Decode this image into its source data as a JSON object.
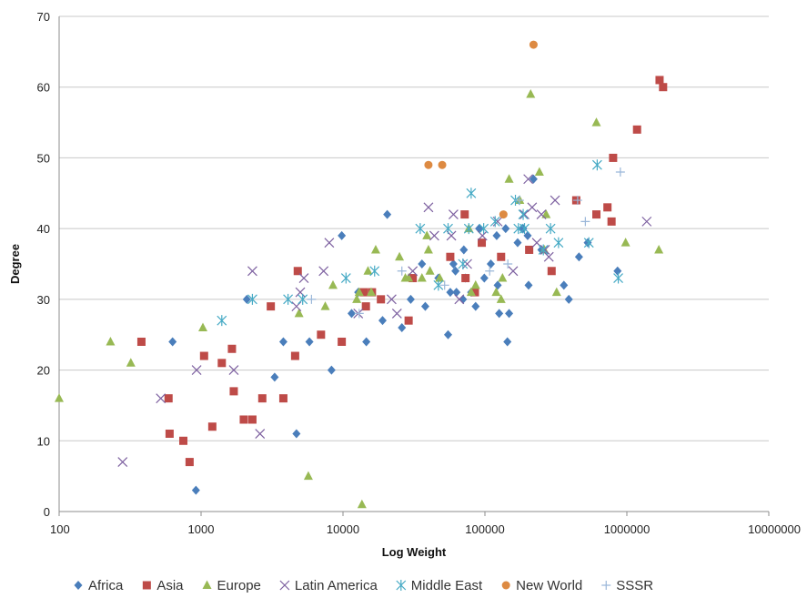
{
  "chart_data": {
    "type": "scatter",
    "title": "",
    "xlabel": "Log Weight",
    "ylabel": "Degree",
    "xscale": "log",
    "xlim": [
      100,
      10000000
    ],
    "ylim": [
      0,
      70
    ],
    "xticks": [
      100,
      1000,
      10000,
      100000,
      1000000,
      10000000
    ],
    "xtick_labels": [
      "100",
      "1000",
      "10000",
      "100000",
      "1000000",
      "10000000"
    ],
    "yticks": [
      0,
      10,
      20,
      30,
      40,
      50,
      60,
      70
    ],
    "ytick_labels": [
      "0",
      "10",
      "20",
      "30",
      "40",
      "50",
      "60",
      "70"
    ],
    "grid": "horizontal",
    "legend_position": "bottom",
    "series": [
      {
        "name": "Africa",
        "marker": "diamond",
        "color": "#4a7ebb",
        "points": [
          [
            630,
            24
          ],
          [
            920,
            3
          ],
          [
            2100,
            30
          ],
          [
            3300,
            19
          ],
          [
            3800,
            24
          ],
          [
            4700,
            11
          ],
          [
            5800,
            24
          ],
          [
            8300,
            20
          ],
          [
            9800,
            39
          ],
          [
            11500,
            28
          ],
          [
            12800,
            31
          ],
          [
            14600,
            24
          ],
          [
            19000,
            27
          ],
          [
            20500,
            42
          ],
          [
            26000,
            26
          ],
          [
            30000,
            30
          ],
          [
            36000,
            35
          ],
          [
            38000,
            29
          ],
          [
            47000,
            33
          ],
          [
            55000,
            25
          ],
          [
            57000,
            31
          ],
          [
            60000,
            35
          ],
          [
            62000,
            34
          ],
          [
            63000,
            31
          ],
          [
            70000,
            30
          ],
          [
            71000,
            37
          ],
          [
            73000,
            33
          ],
          [
            80000,
            31
          ],
          [
            86000,
            29
          ],
          [
            91000,
            40
          ],
          [
            99000,
            33
          ],
          [
            110000,
            35
          ],
          [
            121000,
            39
          ],
          [
            123000,
            32
          ],
          [
            126000,
            28
          ],
          [
            140000,
            40
          ],
          [
            144000,
            24
          ],
          [
            148000,
            28
          ],
          [
            170000,
            38
          ],
          [
            186000,
            40
          ],
          [
            200000,
            39
          ],
          [
            203000,
            32
          ],
          [
            250000,
            37
          ],
          [
            390000,
            30
          ],
          [
            460000,
            36
          ],
          [
            530000,
            38
          ],
          [
            360000,
            32
          ],
          [
            860000,
            34
          ],
          [
            220000,
            47
          ]
        ]
      },
      {
        "name": "Asia",
        "marker": "square",
        "color": "#be4b48",
        "points": [
          [
            380,
            24
          ],
          [
            590,
            16
          ],
          [
            600,
            11
          ],
          [
            750,
            10
          ],
          [
            830,
            7
          ],
          [
            1050,
            22
          ],
          [
            1200,
            12
          ],
          [
            1400,
            21
          ],
          [
            1650,
            23
          ],
          [
            1700,
            17
          ],
          [
            2000,
            13
          ],
          [
            2300,
            13
          ],
          [
            2700,
            16
          ],
          [
            3100,
            29
          ],
          [
            3800,
            16
          ],
          [
            4600,
            22
          ],
          [
            4800,
            34
          ],
          [
            7000,
            25
          ],
          [
            9800,
            24
          ],
          [
            14000,
            31
          ],
          [
            14500,
            29
          ],
          [
            16000,
            31
          ],
          [
            18500,
            30
          ],
          [
            29000,
            27
          ],
          [
            31000,
            33
          ],
          [
            57000,
            36
          ],
          [
            72000,
            42
          ],
          [
            73000,
            33
          ],
          [
            85000,
            31
          ],
          [
            95000,
            38
          ],
          [
            130000,
            36
          ],
          [
            205000,
            37
          ],
          [
            295000,
            34
          ],
          [
            440000,
            44
          ],
          [
            610000,
            42
          ],
          [
            730000,
            43
          ],
          [
            780000,
            41
          ],
          [
            800000,
            50
          ],
          [
            1180000,
            54
          ],
          [
            1700000,
            61
          ],
          [
            1800000,
            60
          ]
        ]
      },
      {
        "name": "Europe",
        "marker": "triangle",
        "color": "#98b954",
        "points": [
          [
            100,
            16
          ],
          [
            230,
            24
          ],
          [
            320,
            21
          ],
          [
            1030,
            26
          ],
          [
            4900,
            28
          ],
          [
            5700,
            5
          ],
          [
            7500,
            29
          ],
          [
            8500,
            32
          ],
          [
            12500,
            30
          ],
          [
            13000,
            31
          ],
          [
            13600,
            1
          ],
          [
            15000,
            34
          ],
          [
            15800,
            31
          ],
          [
            17000,
            37
          ],
          [
            25000,
            36
          ],
          [
            27500,
            33
          ],
          [
            29000,
            33
          ],
          [
            36000,
            33
          ],
          [
            39000,
            39
          ],
          [
            40000,
            37
          ],
          [
            41000,
            34
          ],
          [
            48000,
            33
          ],
          [
            77000,
            40
          ],
          [
            80000,
            31
          ],
          [
            86000,
            32
          ],
          [
            120000,
            31
          ],
          [
            130000,
            30
          ],
          [
            133000,
            33
          ],
          [
            148000,
            47
          ],
          [
            176000,
            44
          ],
          [
            210000,
            59
          ],
          [
            242000,
            48
          ],
          [
            262000,
            37
          ],
          [
            270000,
            42
          ],
          [
            320000,
            31
          ],
          [
            610000,
            55
          ],
          [
            980000,
            38
          ],
          [
            1680000,
            37
          ]
        ]
      },
      {
        "name": "Latin America",
        "marker": "x",
        "color": "#7d60a0",
        "points": [
          [
            280,
            7
          ],
          [
            520,
            16
          ],
          [
            930,
            20
          ],
          [
            1700,
            20
          ],
          [
            2300,
            34
          ],
          [
            2600,
            11
          ],
          [
            4700,
            29
          ],
          [
            5000,
            31
          ],
          [
            5300,
            33
          ],
          [
            7300,
            34
          ],
          [
            8000,
            38
          ],
          [
            12800,
            28
          ],
          [
            22000,
            30
          ],
          [
            24000,
            28
          ],
          [
            31000,
            34
          ],
          [
            40000,
            43
          ],
          [
            44000,
            39
          ],
          [
            58000,
            39
          ],
          [
            60000,
            42
          ],
          [
            66000,
            30
          ],
          [
            75000,
            35
          ],
          [
            96000,
            39
          ],
          [
            123000,
            41
          ],
          [
            158000,
            34
          ],
          [
            190000,
            42
          ],
          [
            202000,
            47
          ],
          [
            215000,
            43
          ],
          [
            232000,
            38
          ],
          [
            250000,
            42
          ],
          [
            265000,
            37
          ],
          [
            282000,
            36
          ],
          [
            312000,
            44
          ],
          [
            1380000,
            41
          ]
        ]
      },
      {
        "name": "Middle East",
        "marker": "asterisk",
        "color": "#46aac5",
        "points": [
          [
            1400,
            27
          ],
          [
            2300,
            30
          ],
          [
            4100,
            30
          ],
          [
            5200,
            30
          ],
          [
            10500,
            33
          ],
          [
            16700,
            34
          ],
          [
            35000,
            40
          ],
          [
            47000,
            32
          ],
          [
            55000,
            40
          ],
          [
            70000,
            35
          ],
          [
            77000,
            40
          ],
          [
            80000,
            45
          ],
          [
            98000,
            40
          ],
          [
            118000,
            41
          ],
          [
            164000,
            44
          ],
          [
            172000,
            40
          ],
          [
            186000,
            42
          ],
          [
            190000,
            40
          ],
          [
            258000,
            37
          ],
          [
            290000,
            40
          ],
          [
            330000,
            38
          ],
          [
            540000,
            38
          ],
          [
            618000,
            49
          ],
          [
            870000,
            33
          ]
        ]
      },
      {
        "name": "New World",
        "marker": "circle",
        "color": "#dd8a42",
        "points": [
          [
            40000,
            49
          ],
          [
            50000,
            49
          ],
          [
            135000,
            42
          ],
          [
            220000,
            66
          ]
        ]
      },
      {
        "name": "SSSR",
        "marker": "plus",
        "color": "#9bb7d9",
        "points": [
          [
            6000,
            30
          ],
          [
            13000,
            28
          ],
          [
            26000,
            34
          ],
          [
            52000,
            32
          ],
          [
            108000,
            34
          ],
          [
            145000,
            35
          ],
          [
            510000,
            41
          ],
          [
            900000,
            48
          ],
          [
            450000,
            44
          ],
          [
            175000,
            44
          ]
        ]
      }
    ]
  }
}
